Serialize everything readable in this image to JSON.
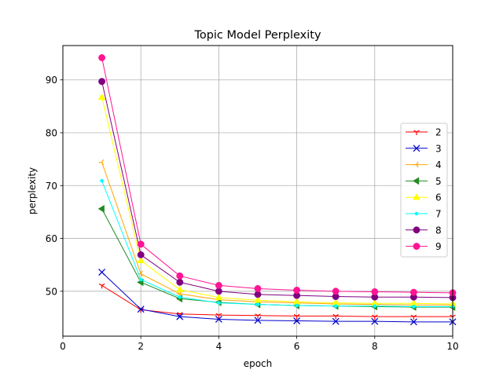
{
  "chart_data": {
    "type": "line",
    "title": "Topic Model Perplexity",
    "xlabel": "epoch",
    "ylabel": "perplexity",
    "xlim": [
      0,
      10
    ],
    "ylim": [
      41.5,
      96.5
    ],
    "xticks": [
      "0",
      "2",
      "4",
      "6",
      "8",
      "10"
    ],
    "yticks": [
      "50",
      "60",
      "70",
      "80",
      "90"
    ],
    "grid": true,
    "legend_position": "center-right",
    "x": [
      1,
      2,
      3,
      4,
      5,
      6,
      7,
      8,
      9,
      10
    ],
    "series": [
      {
        "name": "2",
        "color": "#ff0000",
        "marker": "tri_down",
        "values": [
          51.1,
          46.5,
          45.7,
          45.5,
          45.4,
          45.3,
          45.3,
          45.2,
          45.2,
          45.2
        ]
      },
      {
        "name": "3",
        "color": "#0000cd",
        "marker": "x",
        "values": [
          53.6,
          46.6,
          45.2,
          44.7,
          44.5,
          44.4,
          44.3,
          44.3,
          44.2,
          44.2
        ]
      },
      {
        "name": "4",
        "color": "#ffa500",
        "marker": "tri_left",
        "values": [
          74.4,
          53.3,
          49.5,
          48.4,
          48.0,
          47.8,
          47.6,
          47.5,
          47.4,
          47.4
        ]
      },
      {
        "name": "5",
        "color": "#228b22",
        "marker": "triangle_left",
        "values": [
          65.6,
          51.7,
          48.6,
          47.9,
          47.5,
          47.3,
          47.2,
          47.1,
          47.0,
          47.0
        ]
      },
      {
        "name": "6",
        "color": "#ffff00",
        "marker": "triangle_up",
        "values": [
          86.7,
          55.8,
          50.3,
          48.8,
          48.3,
          48.0,
          47.8,
          47.7,
          47.7,
          47.6
        ]
      },
      {
        "name": "7",
        "color": "#00ffff",
        "marker": "point",
        "values": [
          70.9,
          52.2,
          48.9,
          47.8,
          47.5,
          47.3,
          47.2,
          47.2,
          47.1,
          47.1
        ]
      },
      {
        "name": "8",
        "color": "#800080",
        "marker": "circle",
        "values": [
          89.7,
          56.9,
          51.7,
          50.0,
          49.4,
          49.2,
          49.0,
          48.9,
          48.9,
          48.8
        ]
      },
      {
        "name": "9",
        "color": "#ff1493",
        "marker": "circle",
        "values": [
          94.2,
          58.9,
          52.9,
          51.1,
          50.5,
          50.2,
          50.0,
          49.9,
          49.8,
          49.7
        ]
      }
    ]
  }
}
